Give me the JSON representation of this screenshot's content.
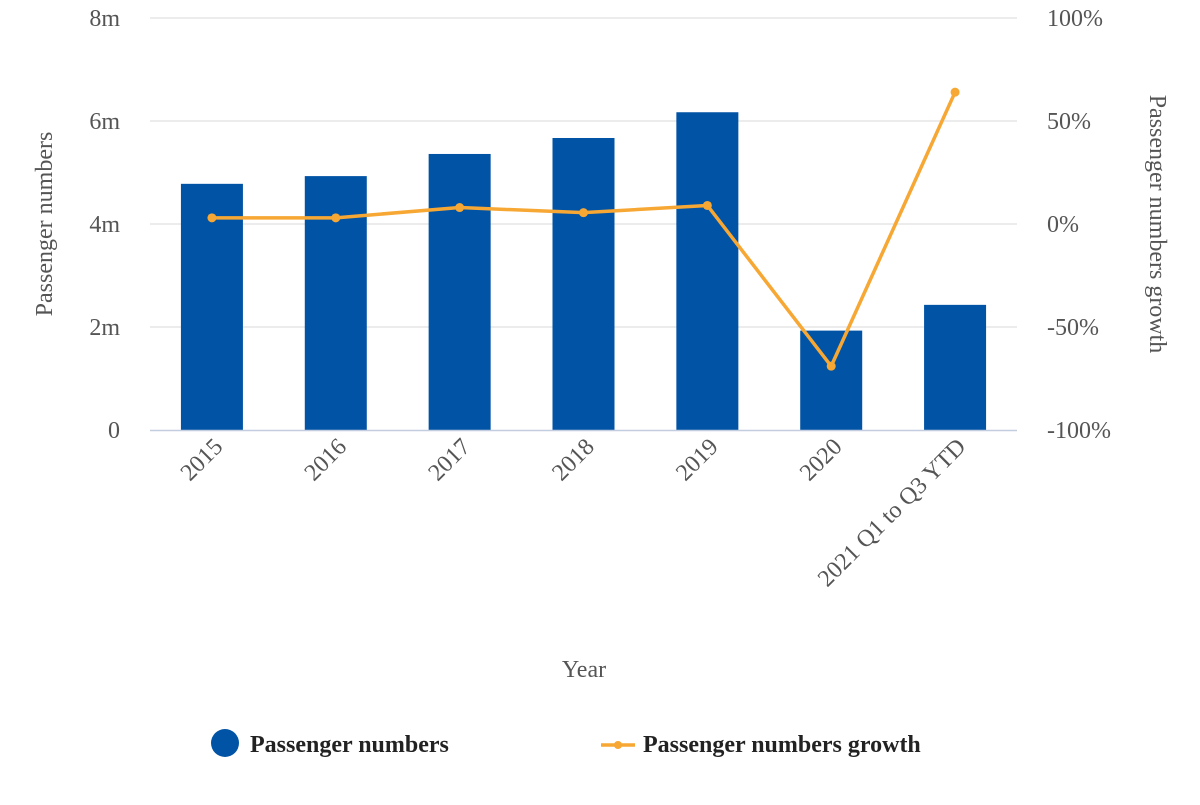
{
  "chart_data": {
    "type": "bar",
    "categories": [
      "2015",
      "2016",
      "2017",
      "2018",
      "2019",
      "2020",
      "2021 Q1 to Q3 YTD"
    ],
    "series": [
      {
        "name": "Passenger numbers",
        "type": "bar",
        "axis": "left",
        "color": "#0153A5",
        "values": [
          4.78,
          4.93,
          5.36,
          5.67,
          6.17,
          1.93,
          2.43
        ]
      },
      {
        "name": "Passenger numbers growth",
        "type": "line",
        "axis": "right",
        "color": "#F7A733",
        "values": [
          3.0,
          3.0,
          8.0,
          5.5,
          9.0,
          -69.0,
          64.0
        ]
      }
    ],
    "xlabel": "Year",
    "ylabel": "Passenger numbers",
    "ylabel_right": "Passenger numbers growth",
    "ylim": [
      0,
      8
    ],
    "ylim_right": [
      -100,
      100
    ],
    "yticks": [
      "0",
      "2m",
      "4m",
      "6m",
      "8m"
    ],
    "yticks_right": [
      "-100%",
      "-50%",
      "0%",
      "50%",
      "100%"
    ],
    "grid": true,
    "legend_position": "bottom"
  }
}
